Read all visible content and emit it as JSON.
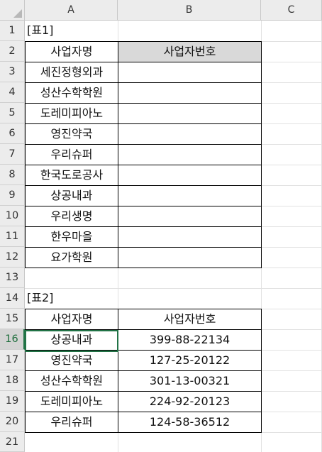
{
  "columns": [
    "A",
    "B",
    "C"
  ],
  "rows": [
    "1",
    "2",
    "3",
    "4",
    "5",
    "6",
    "7",
    "8",
    "9",
    "10",
    "11",
    "12",
    "13",
    "14",
    "15",
    "16",
    "17",
    "18",
    "19",
    "20",
    "21"
  ],
  "active_row": "16",
  "table1": {
    "label": "[표1]",
    "header_name": "사업자명",
    "header_number": "사업자번호",
    "names": [
      "세진정형외과",
      "성산수학학원",
      "도레미피아노",
      "영진약국",
      "우리슈퍼",
      "한국도로공사",
      "상공내과",
      "우리생명",
      "한우마을",
      "요가학원"
    ]
  },
  "table2": {
    "label": "[표2]",
    "header_name": "사업자명",
    "header_number": "사업자번호",
    "rows": [
      {
        "name": "상공내과",
        "number": "399-88-22134"
      },
      {
        "name": "영진약국",
        "number": "127-25-20122"
      },
      {
        "name": "성산수학학원",
        "number": "301-13-00321"
      },
      {
        "name": "도레미피아노",
        "number": "224-92-20123"
      },
      {
        "name": "우리슈퍼",
        "number": "124-58-36512"
      }
    ]
  },
  "colors": {
    "header_fill": "#d9d9d9",
    "selection": "#217346"
  }
}
